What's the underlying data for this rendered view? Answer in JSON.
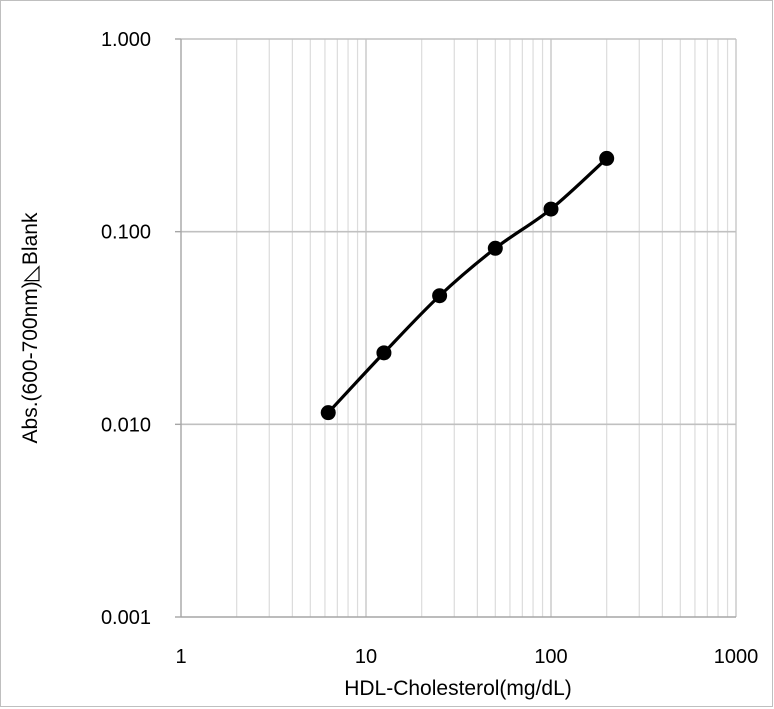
{
  "chart_data": {
    "type": "line",
    "title": "",
    "xlabel": "HDL-Cholesterol(mg/dL)",
    "ylabel": "Abs.(600-700nm)◺Blank",
    "x_scale": "log",
    "y_scale": "log",
    "xlim": [
      1,
      1000
    ],
    "ylim": [
      0.001,
      1.0
    ],
    "x_ticks": [
      "1",
      "10",
      "100",
      "1000"
    ],
    "y_ticks": [
      "0.001",
      "0.010",
      "0.100",
      "1.000"
    ],
    "grid": true,
    "legend": "none",
    "series": [
      {
        "x": [
          6.25,
          12.5,
          25,
          50,
          100,
          200
        ],
        "y": [
          0.0115,
          0.0235,
          0.0465,
          0.082,
          0.131,
          0.24
        ],
        "color": "#000000",
        "marker": "circle"
      }
    ]
  }
}
